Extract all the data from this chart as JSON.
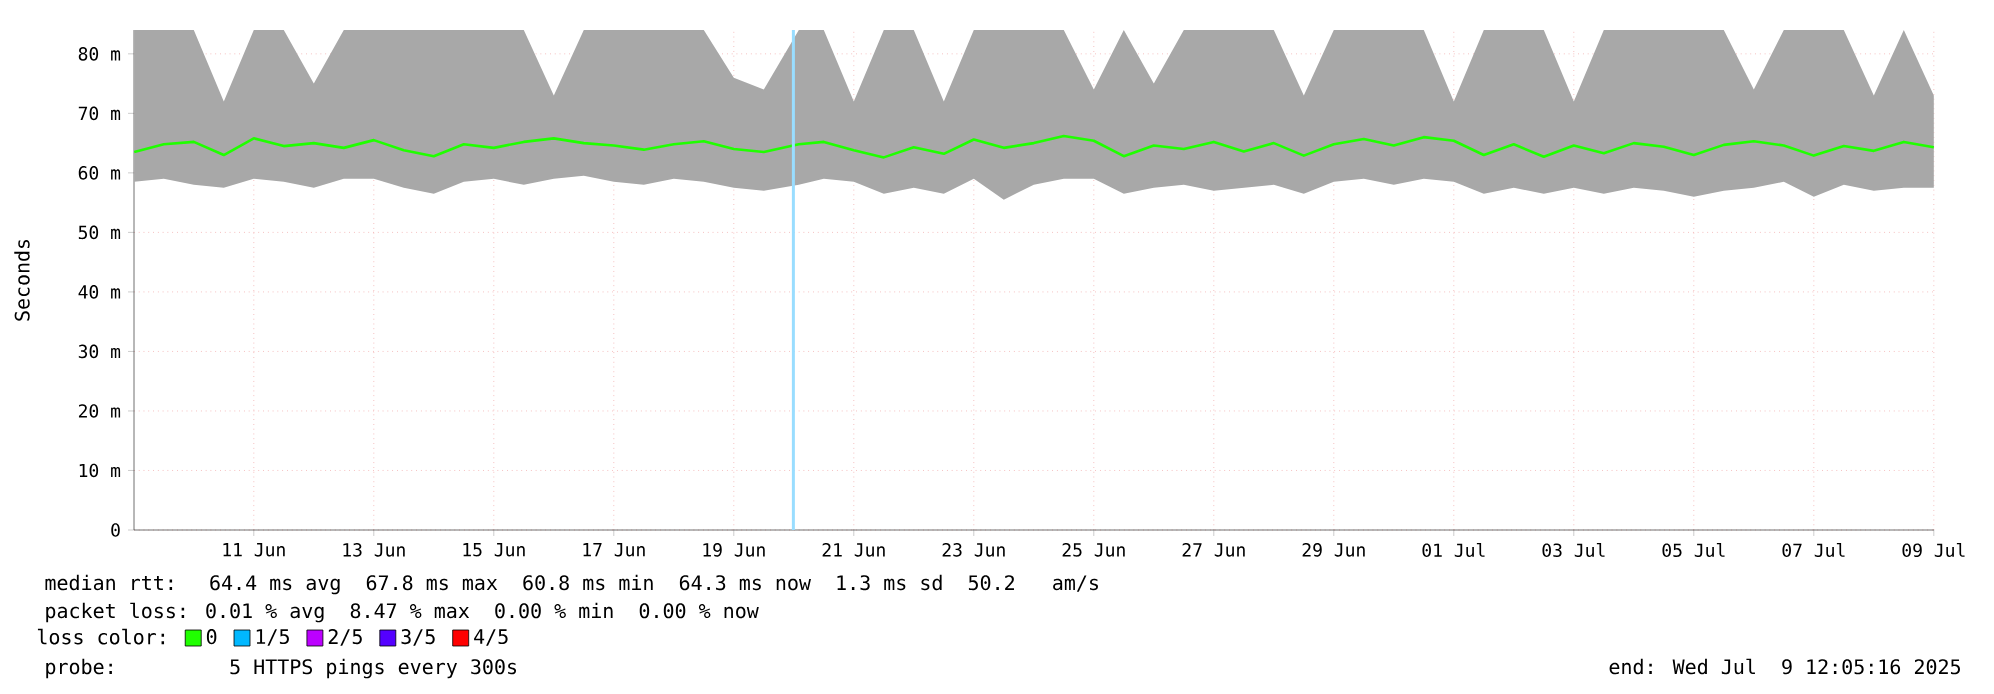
{
  "chart_data": {
    "type": "line",
    "ylabel": "Seconds",
    "legend_title": "loss color:",
    "legend": "bottom",
    "grid": true,
    "marker": "none",
    "line_style": "solid",
    "x": [
      "2025-06-09T12:10",
      "2025-06-10T00:00",
      "2025-06-10T12:00",
      "2025-06-11T00:00",
      "2025-06-11T12:00",
      "2025-06-12T00:00",
      "2025-06-12T12:00",
      "2025-06-13T00:00",
      "2025-06-13T12:00",
      "2025-06-14T00:00",
      "2025-06-14T12:00",
      "2025-06-15T00:00",
      "2025-06-15T12:00",
      "2025-06-16T00:00",
      "2025-06-16T12:00",
      "2025-06-17T00:00",
      "2025-06-17T12:00",
      "2025-06-18T00:00",
      "2025-06-18T12:00",
      "2025-06-19T00:00",
      "2025-06-19T12:00",
      "2025-06-20T00:00",
      "2025-06-20T14:00",
      "2025-06-21T00:00",
      "2025-06-21T12:00",
      "2025-06-22T00:00",
      "2025-06-22T12:00",
      "2025-06-23T00:00",
      "2025-06-23T12:00",
      "2025-06-24T00:00",
      "2025-06-24T12:00",
      "2025-06-25T00:00",
      "2025-06-25T12:00",
      "2025-06-26T00:00",
      "2025-06-26T12:00",
      "2025-06-27T00:00",
      "2025-06-27T12:00",
      "2025-06-28T00:00",
      "2025-06-28T12:00",
      "2025-06-29T00:00",
      "2025-06-29T12:00",
      "2025-06-30T00:00",
      "2025-06-30T12:00",
      "2025-07-01T00:00",
      "2025-07-01T12:00",
      "2025-07-02T00:00",
      "2025-07-02T12:00",
      "2025-07-03T00:00",
      "2025-07-03T12:00",
      "2025-07-04T00:00",
      "2025-07-04T12:00",
      "2025-07-05T00:00",
      "2025-07-05T12:00",
      "2025-07-06T00:00",
      "2025-07-06T12:00",
      "2025-07-07T00:00",
      "2025-07-07T12:00",
      "2025-07-08T00:00",
      "2025-07-08T12:00",
      "2025-07-09T00:00",
      "2025-07-09T12:00"
    ],
    "series": [
      {
        "name": "0",
        "color": "#20ff00",
        "values": [
          63.5,
          64.8,
          65.2,
          63.0,
          65.8,
          64.5,
          65.0,
          64.2,
          65.5,
          63.8,
          62.8,
          64.8,
          64.2,
          65.2,
          65.8,
          65.0,
          64.6,
          63.9,
          64.8,
          65.3,
          64.0,
          63.5,
          64.8,
          65.2,
          63.8,
          62.6,
          64.3,
          63.2,
          65.6,
          64.2,
          65.0,
          66.2,
          65.4,
          62.8,
          64.6,
          64.0,
          65.2,
          63.6,
          65.0,
          62.9,
          64.8,
          65.7,
          64.6,
          66.0,
          65.4,
          63.0,
          64.8,
          62.7,
          64.6,
          63.3,
          65.0,
          64.4,
          63.0,
          64.7,
          65.3,
          64.6,
          62.9,
          64.5,
          63.7,
          65.2,
          64.3
        ],
        "lower": [
          58.5,
          59,
          58,
          57.5,
          59,
          58.5,
          57.5,
          59,
          59,
          57.5,
          56.5,
          58.5,
          59,
          58,
          59,
          59.5,
          58.5,
          58,
          59,
          58.5,
          57.5,
          57,
          58,
          59,
          58.5,
          56.5,
          57.5,
          56.5,
          59,
          55.5,
          58,
          59,
          59,
          56.5,
          57.5,
          58,
          57,
          57.5,
          58,
          56.5,
          58.5,
          59,
          58,
          59,
          58.5,
          56.5,
          57.5,
          56.5,
          57.5,
          56.5,
          57.5,
          57,
          56,
          57,
          57.5,
          58.5,
          56,
          58,
          57,
          57.5,
          57.5
        ],
        "upper": [
          84,
          84,
          84,
          72,
          84,
          84,
          75,
          84,
          84,
          84,
          84,
          84,
          84,
          84,
          73,
          84,
          84,
          84,
          84,
          84,
          76,
          74,
          84,
          84,
          72,
          84,
          84,
          72,
          84,
          84,
          84,
          84,
          74,
          84,
          75,
          84,
          84,
          84,
          84,
          73,
          84,
          84,
          84,
          84,
          72,
          84,
          84,
          84,
          72,
          84,
          84,
          84,
          84,
          84,
          74,
          84,
          84,
          84,
          73,
          84,
          73
        ]
      },
      {
        "name": "1/5",
        "color": "#00b8ff",
        "values": [
          null,
          null,
          null,
          null,
          null,
          null,
          null,
          null,
          null,
          null,
          null,
          null,
          null,
          null,
          null,
          null,
          null,
          null,
          null,
          null,
          null,
          null,
          null,
          null,
          null,
          null,
          null,
          null,
          null,
          null,
          null,
          null,
          null,
          null,
          null,
          null,
          null,
          null,
          null,
          null,
          null,
          null,
          null,
          null,
          null,
          null,
          null,
          null,
          null,
          null,
          null,
          null,
          null,
          null,
          null,
          null,
          null,
          null,
          null,
          null,
          null
        ]
      },
      {
        "name": "2/5",
        "color": "#bc00ff",
        "values": [
          null,
          null,
          null,
          null,
          null,
          null,
          null,
          null,
          null,
          null,
          null,
          null,
          null,
          null,
          null,
          null,
          null,
          null,
          null,
          null,
          null,
          null,
          null,
          null,
          null,
          null,
          null,
          null,
          null,
          null,
          null,
          null,
          null,
          null,
          null,
          null,
          null,
          null,
          null,
          null,
          null,
          null,
          null,
          null,
          null,
          null,
          null,
          null,
          null,
          null,
          null,
          null,
          null,
          null,
          null,
          null,
          null,
          null,
          null,
          null,
          null
        ]
      },
      {
        "name": "3/5",
        "color": "#5400ff",
        "values": [
          null,
          null,
          null,
          null,
          null,
          null,
          null,
          null,
          null,
          null,
          null,
          null,
          null,
          null,
          null,
          null,
          null,
          null,
          null,
          null,
          null,
          null,
          null,
          null,
          null,
          null,
          null,
          null,
          null,
          null,
          null,
          null,
          null,
          null,
          null,
          null,
          null,
          null,
          null,
          null,
          null,
          null,
          null,
          null,
          null,
          null,
          null,
          null,
          null,
          null,
          null,
          null,
          null,
          null,
          null,
          null,
          null,
          null,
          null,
          null,
          null
        ]
      },
      {
        "name": "4/5",
        "color": "#ff0000",
        "values": [
          null,
          null,
          null,
          null,
          null,
          null,
          null,
          null,
          null,
          null,
          null,
          null,
          null,
          null,
          null,
          null,
          null,
          null,
          null,
          null,
          null,
          null,
          null,
          null,
          null,
          null,
          null,
          null,
          null,
          null,
          null,
          null,
          null,
          null,
          null,
          null,
          null,
          null,
          null,
          null,
          null,
          null,
          null,
          null,
          null,
          null,
          null,
          null,
          null,
          null,
          null,
          null,
          null,
          null,
          null,
          null,
          null,
          null,
          null,
          null,
          null
        ]
      }
    ],
    "xlim": [
      "2025-06-09T12:05",
      "2025-07-09T12:05"
    ],
    "xticks": [
      {
        "value": "2025-06-11T12:00",
        "label": "11 Jun"
      },
      {
        "value": "2025-06-13T12:00",
        "label": "13 Jun"
      },
      {
        "value": "2025-06-15T12:00",
        "label": "15 Jun"
      },
      {
        "value": "2025-06-17T12:00",
        "label": "17 Jun"
      },
      {
        "value": "2025-06-19T12:00",
        "label": "19 Jun"
      },
      {
        "value": "2025-06-21T12:00",
        "label": "21 Jun"
      },
      {
        "value": "2025-06-23T12:00",
        "label": "23 Jun"
      },
      {
        "value": "2025-06-25T12:00",
        "label": "25 Jun"
      },
      {
        "value": "2025-06-27T12:00",
        "label": "27 Jun"
      },
      {
        "value": "2025-06-29T12:00",
        "label": "29 Jun"
      },
      {
        "value": "2025-07-01T12:00",
        "label": "01 Jul"
      },
      {
        "value": "2025-07-03T12:00",
        "label": "03 Jul"
      },
      {
        "value": "2025-07-05T12:00",
        "label": "05 Jul"
      },
      {
        "value": "2025-07-07T12:00",
        "label": "07 Jul"
      },
      {
        "value": "2025-07-09T12:00",
        "label": "09 Jul"
      }
    ],
    "ylim": [
      0,
      84
    ],
    "yticks": [
      0,
      {
        "value": 10,
        "label": "10 m"
      },
      {
        "value": 20,
        "label": "20 m"
      },
      {
        "value": 30,
        "label": "30 m"
      },
      {
        "value": 40,
        "label": "40 m"
      },
      {
        "value": 50,
        "label": "50 m"
      },
      {
        "value": 60,
        "label": "60 m"
      },
      {
        "value": 70,
        "label": "70 m"
      },
      {
        "value": 80,
        "label": "80 m"
      }
    ],
    "ref_lines": [
      {
        "axis": "x",
        "value": "2025-06-20T11:50",
        "color": "#99ddff"
      }
    ],
    "annotations": [
      "median rtt:  64.4 ms avg  67.8 ms max  60.8 ms min  64.3 ms now  1.3 ms sd  50.2   am/s",
      "packet loss: 0.01 % avg  8.47 % max  0.00 % min  0.00 % now",
      "probe:       5 HTTPS pings every 300s",
      "end: Wed Jul  9 12:05:16 2025"
    ]
  }
}
